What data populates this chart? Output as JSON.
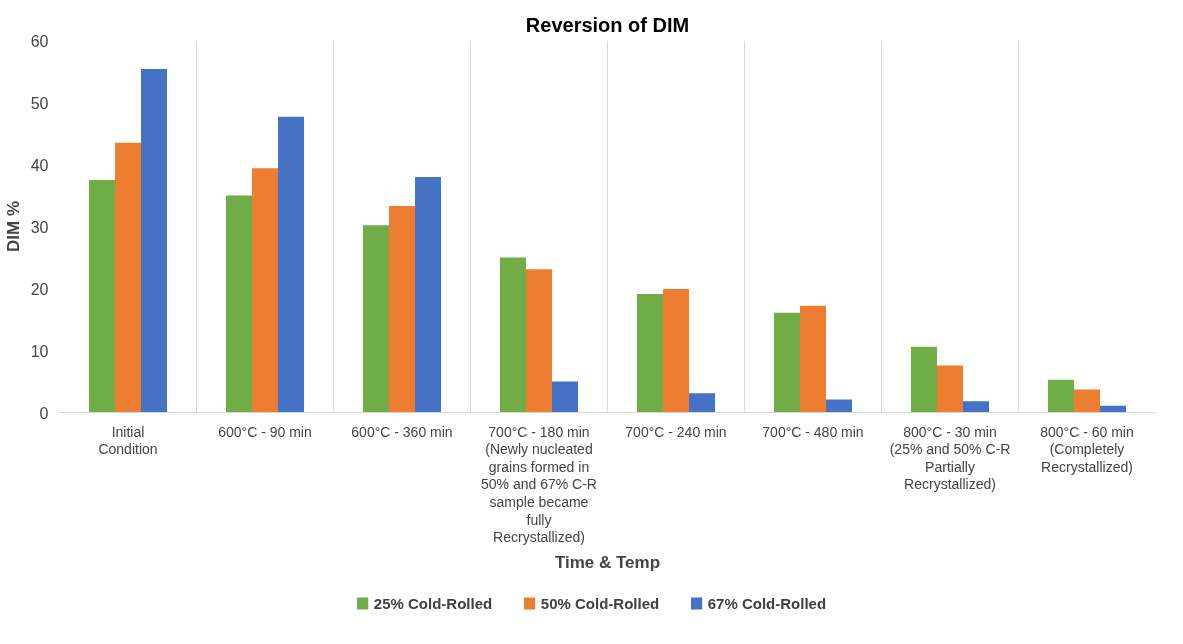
{
  "chart_data": {
    "type": "bar",
    "title": "Reversion of DIM",
    "xlabel": "Time & Temp",
    "ylabel": "DIM %",
    "categories": [
      "Initial Condition",
      "600°C - 90 min",
      "600°C - 360 min",
      "700°C - 180 min (Newly nucleated grains formed in 50% and 67% C-R sample became fully Recrystallized)",
      "700°C - 240 min",
      "700°C - 480 min",
      "800°C - 30 min (25% and 50% C-R Partially Recrystallized)",
      "800°C - 60 min (Completely Recrystallized)"
    ],
    "series": [
      {
        "name": "25% Cold-Rolled",
        "color": "#70ad47",
        "values": [
          37.5,
          35.0,
          30.2,
          25.0,
          19.1,
          16.1,
          10.6,
          5.3
        ]
      },
      {
        "name": "50% Cold-Rolled",
        "color": "#ed7d31",
        "values": [
          43.5,
          39.4,
          33.3,
          23.1,
          19.9,
          17.2,
          7.6,
          3.7
        ]
      },
      {
        "name": "67% Cold-Rolled",
        "color": "#4472c4",
        "values": [
          55.4,
          47.7,
          38.0,
          5.0,
          3.1,
          2.1,
          1.8,
          1.1
        ]
      }
    ],
    "ylim": [
      0,
      60
    ],
    "yticks": [
      0,
      10,
      20,
      30,
      40,
      50,
      60
    ],
    "grid": "x",
    "legend": "bottom"
  }
}
